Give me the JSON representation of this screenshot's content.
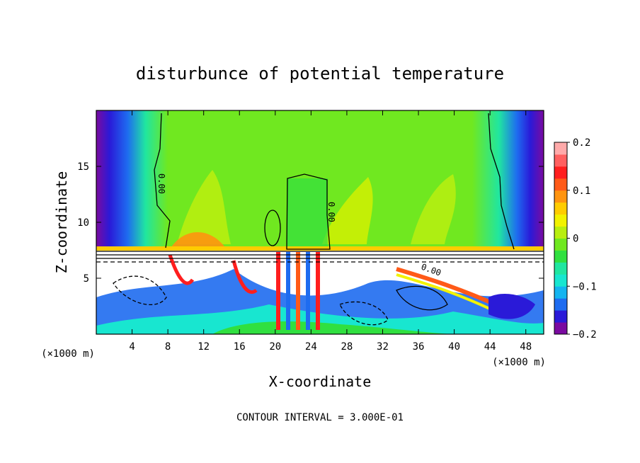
{
  "chart_data": {
    "type": "heatmap",
    "title": "disturbunce of potential temperature",
    "xlabel": "X-coordinate",
    "ylabel": "Z-coordinate",
    "x_unit_left": "(×1000 m)",
    "x_unit_right": "(×1000 m)",
    "x_range": [
      0,
      50
    ],
    "z_range": [
      0,
      20
    ],
    "x_ticks": [
      4,
      8,
      12,
      16,
      20,
      24,
      28,
      32,
      36,
      40,
      44,
      48
    ],
    "z_ticks": [
      5,
      10,
      15
    ],
    "footer": "CONTOUR INTERVAL = 3.000E-01",
    "colorbar": {
      "range": [
        -0.2,
        0.2
      ],
      "tick_labels": [
        {
          "value": 0.2,
          "text": "0.2"
        },
        {
          "value": 0.1,
          "text": "0.1"
        },
        {
          "value": 0,
          "text": "0"
        },
        {
          "value": -0.1,
          "text": "−0.1"
        },
        {
          "value": -0.2,
          "text": "−0.2"
        }
      ],
      "colors": [
        "#7a0aa0",
        "#2a1ad8",
        "#1e6cf0",
        "#14b4f0",
        "#18e6d0",
        "#20e6a0",
        "#30e040",
        "#70e820",
        "#b8ee10",
        "#f2f200",
        "#ffcc00",
        "#ff9410",
        "#ff5a18",
        "#ff1e1e",
        "#ff6060",
        "#ffaaaa"
      ]
    },
    "contour_labels": [
      "0.00",
      "0.00",
      "0.00"
    ],
    "annotations": [
      "0.00 contour label near x=7.0, z=12.8",
      "0.00 contour label near x=26.5, z=10.4"
    ]
  }
}
